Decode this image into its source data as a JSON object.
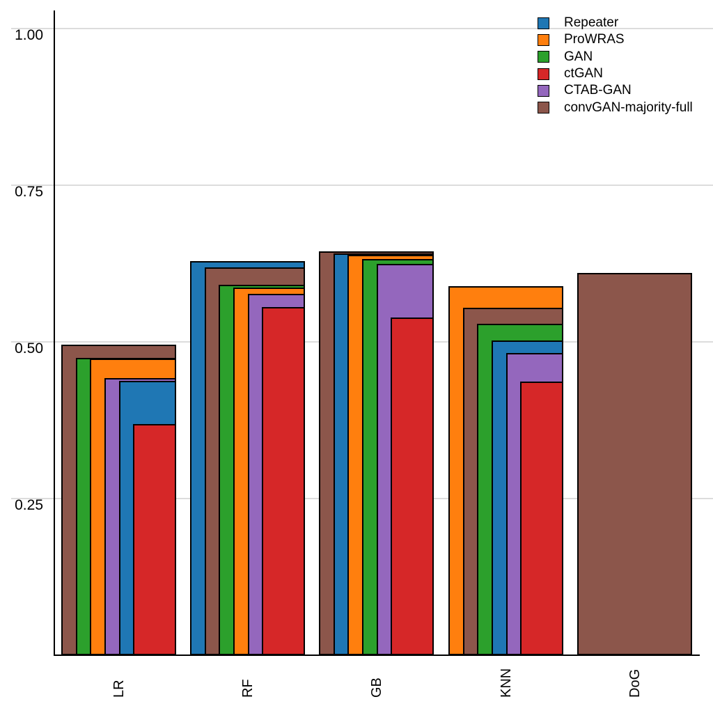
{
  "chart_data": {
    "type": "bar",
    "variant": "nested-overlapping-bars-right-aligned-sorted-by-height",
    "title": "",
    "xlabel": "",
    "ylabel": "",
    "categories": [
      "LR",
      "RF",
      "GB",
      "KNN",
      "DoG"
    ],
    "series": [
      {
        "name": "Repeater",
        "color": "#1f77b4",
        "values": [
          0.438,
          0.629,
          0.641,
          0.502,
          null
        ]
      },
      {
        "name": "ProWRAS",
        "color": "#ff7f0e",
        "values": [
          0.473,
          0.587,
          0.639,
          0.589,
          null
        ]
      },
      {
        "name": "GAN",
        "color": "#2ca02c",
        "values": [
          0.474,
          0.591,
          0.632,
          0.529,
          null
        ]
      },
      {
        "name": "ctGAN",
        "color": "#d62728",
        "values": [
          0.369,
          0.556,
          0.539,
          0.437,
          null
        ]
      },
      {
        "name": "CTAB-GAN",
        "color": "#9467bd",
        "values": [
          0.442,
          0.577,
          0.624,
          0.482,
          null
        ]
      },
      {
        "name": "convGAN-majority-full",
        "color": "#8c564b",
        "values": [
          0.496,
          0.619,
          0.644,
          0.554,
          0.61
        ]
      }
    ],
    "ylim": [
      0,
      1.05
    ],
    "yticks": [
      {
        "value": 0.25,
        "label": "0.25"
      },
      {
        "value": 0.5,
        "label": "0.50"
      },
      {
        "value": 0.75,
        "label": "0.75"
      },
      {
        "value": 1.0,
        "label": "1.00"
      }
    ],
    "grid": "horizontal",
    "gridline_color": "#dcdcdc",
    "axis_color": "#000000",
    "bar_outline_color": "#000000",
    "background_color": "#ffffff",
    "legend_position": "top-right"
  }
}
